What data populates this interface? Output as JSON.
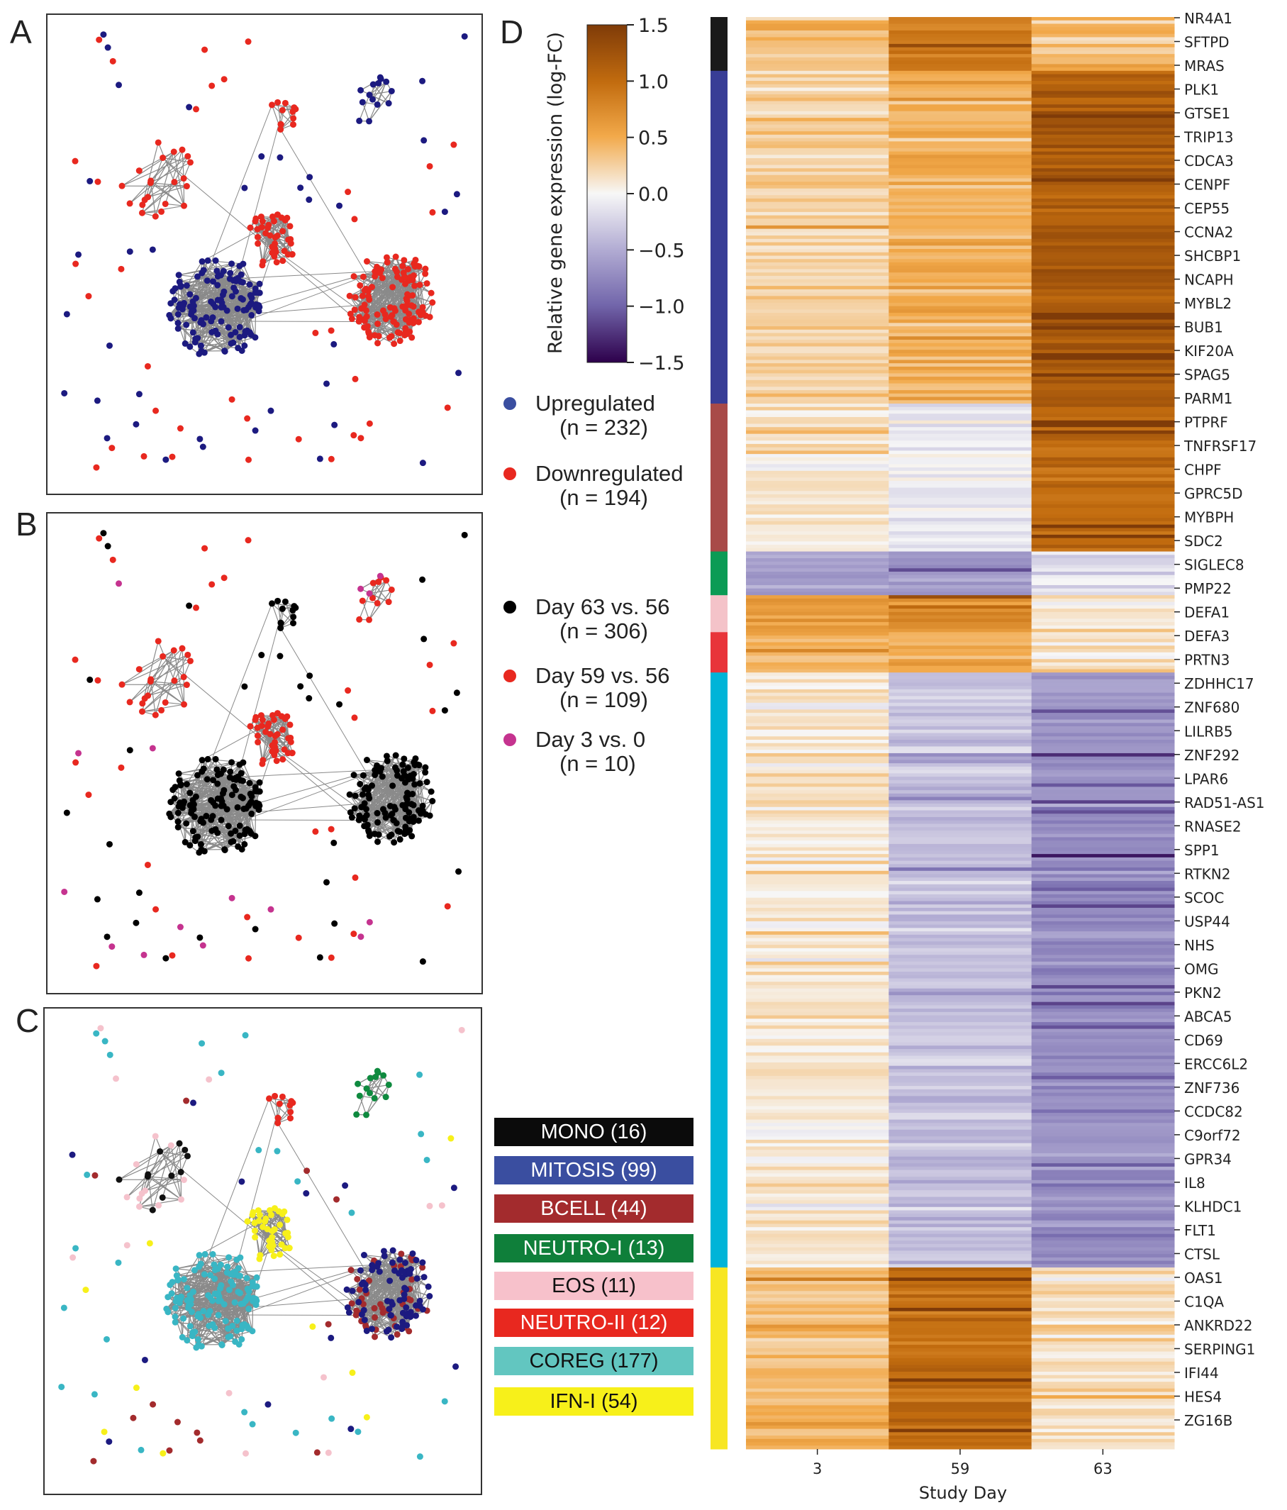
{
  "panel_labels": [
    "A",
    "B",
    "C",
    "D"
  ],
  "colors": {
    "upregulated": "#3a4ea0",
    "downregulated": "#e8281f",
    "day63": "#000000",
    "day59": "#e8281f",
    "day3": "#c5338f",
    "edge": "#8a8a8a",
    "mono": "#111111",
    "mitosis": "#3a4ea0",
    "bcell": "#a32b2d",
    "neutro1": "#0f8a3f",
    "eos": "#f5c2cc",
    "neutro2": "#e8281f",
    "coreg": "#5fc5c0",
    "ifn": "#f5ef1f",
    "navy_node": "#1c1a80",
    "teal_node": "#39b6c4",
    "yellow_node": "#f7f01a"
  },
  "legend_a": [
    {
      "label": "Upregulated",
      "count": "(n = 232)",
      "color": "#3a4ea0"
    },
    {
      "label": "Downregulated",
      "count": "(n = 194)",
      "color": "#e8281f"
    }
  ],
  "legend_b": [
    {
      "label": "Day 63 vs. 56",
      "count": "(n = 306)",
      "color": "#000000"
    },
    {
      "label": "Day 59 vs. 56",
      "count": "(n = 109)",
      "color": "#e8281f"
    },
    {
      "label": "Day 3 vs. 0",
      "count": "(n = 10)",
      "color": "#c5338f"
    }
  ],
  "modules": [
    {
      "label": "MONO (16)",
      "color": "#0b0b0b",
      "dark": false
    },
    {
      "label": "MITOSIS (99)",
      "color": "#3a4ea0",
      "dark": false
    },
    {
      "label": "BCELL (44)",
      "color": "#a32b2d",
      "dark": false
    },
    {
      "label": "NEUTRO-I (13)",
      "color": "#0f7f3a",
      "dark": false
    },
    {
      "label": "EOS (11)",
      "color": "#f7c1cb",
      "dark": true
    },
    {
      "label": "NEUTRO-II (12)",
      "color": "#e8281f",
      "dark": false
    },
    {
      "label": "COREG (177)",
      "color": "#62c6c0",
      "dark": true
    },
    {
      "label": "IFN-I (54)",
      "color": "#f7f01a",
      "dark": true
    }
  ],
  "chart_data": {
    "type": "heatmap",
    "title": "",
    "xlabel": "Study Day",
    "x_categories": [
      "3",
      "59",
      "63"
    ],
    "colorbar": {
      "label": "Relative gene expression (log-FC)",
      "range": [
        -1.5,
        1.5
      ],
      "ticks": [
        "1.5",
        "1.0",
        "0.5",
        "0.0",
        "−0.5",
        "−1.0",
        "−1.5"
      ],
      "tick_values": [
        1.5,
        1.0,
        0.5,
        0.0,
        -0.5,
        -1.0,
        -1.5
      ]
    },
    "module_bands": [
      {
        "module": "MONO",
        "color": "#1a1a1a",
        "rows": 16,
        "mean_values": [
          0.35,
          0.85,
          0.4
        ]
      },
      {
        "module": "MITOSIS",
        "color": "#383d96",
        "rows": 99,
        "mean_values": [
          0.25,
          0.45,
          1.2
        ]
      },
      {
        "module": "BCELL",
        "color": "#a84a48",
        "rows": 44,
        "mean_values": [
          0.15,
          -0.1,
          1.0
        ]
      },
      {
        "module": "NEUTRO-I",
        "color": "#0b9b55",
        "rows": 13,
        "mean_values": [
          -0.55,
          -0.7,
          -0.15
        ]
      },
      {
        "module": "EOS",
        "color": "#f4c3c9",
        "rows": 11,
        "mean_values": [
          0.6,
          0.75,
          0.1
        ]
      },
      {
        "module": "NEUTRO-II",
        "color": "#e8343a",
        "rows": 12,
        "mean_values": [
          0.45,
          0.45,
          0.1
        ]
      },
      {
        "module": "COREG",
        "color": "#00b4d8",
        "rows": 177,
        "mean_values": [
          0.1,
          -0.35,
          -0.7
        ]
      },
      {
        "module": "IFN-I",
        "color": "#f7e622",
        "rows": 54,
        "mean_values": [
          0.35,
          1.0,
          0.15
        ]
      }
    ],
    "gene_labels": [
      "NR4A1",
      "SFTPD",
      "MRAS",
      "PLK1",
      "GTSE1",
      "TRIP13",
      "CDCA3",
      "CENPF",
      "CEP55",
      "CCNA2",
      "SHCBP1",
      "NCAPH",
      "MYBL2",
      "BUB1",
      "KIF20A",
      "SPAG5",
      "PARM1",
      "PTPRF",
      "TNFRSF17",
      "CHPF",
      "GPRC5D",
      "MYBPH",
      "SDC2",
      "SIGLEC8",
      "PMP22",
      "DEFA1",
      "DEFA3",
      "PRTN3",
      "ZDHHC17",
      "ZNF680",
      "LILRB5",
      "ZNF292",
      "LPAR6",
      "RAD51-AS1",
      "RNASE2",
      "SPP1",
      "RTKN2",
      "SCOC",
      "USP44",
      "NHS",
      "OMG",
      "PKN2",
      "ABCA5",
      "CD69",
      "ERCC6L2",
      "ZNF736",
      "CCDC82",
      "C9orf72",
      "GPR34",
      "IL8",
      "KLHDC1",
      "FLT1",
      "CTSL",
      "OAS1",
      "C1QA",
      "ANKRD22",
      "SERPING1",
      "IFI44",
      "HES4",
      "ZG16B"
    ]
  }
}
